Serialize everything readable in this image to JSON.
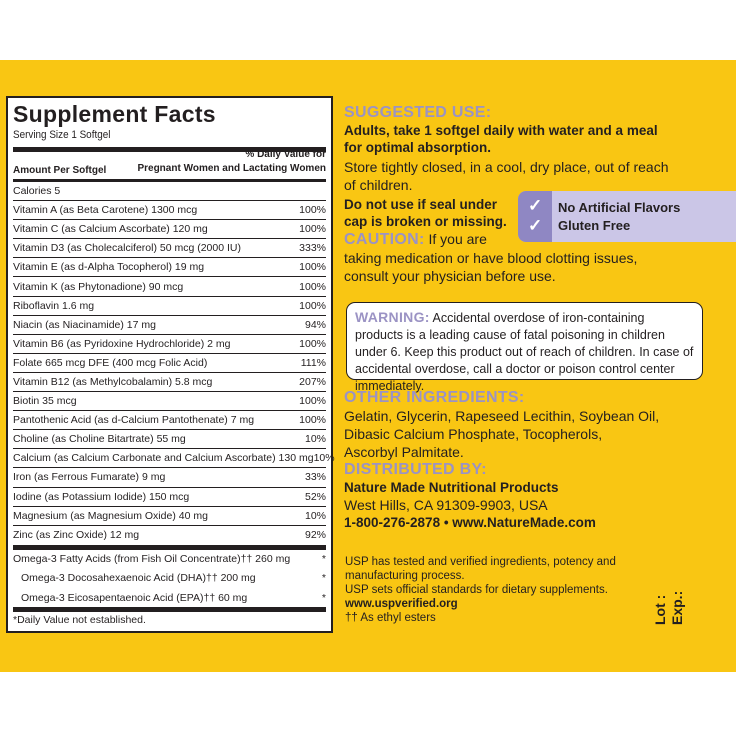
{
  "colors": {
    "band": "#f9c613",
    "heading": "#9b93c4",
    "badge": "#cbc6e7",
    "badge_dark": "#8f87c3"
  },
  "facts": {
    "title": "Supplement Facts",
    "serving": "Serving Size 1 Softgel",
    "amount_header": "Amount Per Softgel",
    "dv_header_1": "% Daily Value for",
    "dv_header_2": "Pregnant Women and Lactating Women",
    "calories": "Calories 5",
    "rows": [
      {
        "name": "Vitamin A (as Beta Carotene)  1300 mcg",
        "dv": "100%"
      },
      {
        "name": "Vitamin C (as Calcium Ascorbate)  120 mg",
        "dv": "100%"
      },
      {
        "name": "Vitamin D3 (as Cholecalciferol)  50 mcg (2000 IU)",
        "dv": "333%"
      },
      {
        "name": "Vitamin E (as d-Alpha Tocopherol) 19 mg",
        "dv": "100%"
      },
      {
        "name": "Vitamin K (as Phytonadione)  90 mcg",
        "dv": "100%"
      },
      {
        "name": "Riboflavin  1.6 mg",
        "dv": "100%"
      },
      {
        "name": "Niacin (as Niacinamide)  17 mg",
        "dv": "94%"
      },
      {
        "name": "Vitamin B6 (as Pyridoxine Hydrochloride)  2 mg",
        "dv": "100%"
      },
      {
        "name": "Folate  665 mcg DFE (400 mcg Folic Acid)",
        "dv": "111%"
      },
      {
        "name": "Vitamin B12 (as Methylcobalamin)  5.8 mcg",
        "dv": "207%"
      },
      {
        "name": "Biotin  35 mcg",
        "dv": "100%"
      },
      {
        "name": "Pantothenic Acid (as d-Calcium Pantothenate)  7 mg",
        "dv": "100%"
      },
      {
        "name": "Choline (as Choline Bitartrate)  55 mg",
        "dv": "10%"
      },
      {
        "name": "Calcium (as Calcium Carbonate and Calcium Ascorbate)  130 mg",
        "dv": "10%"
      },
      {
        "name": "Iron (as Ferrous Fumarate)  9 mg",
        "dv": "33%"
      },
      {
        "name": "Iodine (as Potassium Iodide)  150 mcg",
        "dv": "52%"
      },
      {
        "name": "Magnesium (as Magnesium Oxide)  40 mg",
        "dv": "10%"
      },
      {
        "name": "Zinc (as Zinc Oxide)  12 mg",
        "dv": "92%"
      }
    ],
    "omega": [
      {
        "name": "Omega-3 Fatty Acids (from Fish Oil Concentrate)†† 260 mg",
        "dv": "*"
      },
      {
        "name": "Omega-3 Docosahexaenoic Acid (DHA)†† 200 mg",
        "dv": "*"
      },
      {
        "name": "Omega-3 Eicosapentaenoic Acid (EPA)†† 60 mg",
        "dv": "*"
      }
    ],
    "footnote": "*Daily Value not established."
  },
  "right": {
    "suggested_heading": "SUGGESTED USE:",
    "suggested_1": "Adults, take 1 softgel daily with water and a meal",
    "suggested_2": "for optimal absorption.",
    "store_1": "Store tightly closed, in a cool, dry place, out of reach",
    "store_2": "of children.",
    "seal_1": "Do not use if seal under",
    "seal_2": "cap is broken or missing.",
    "caution_heading": "CAUTION:",
    "caution_1": " If you are",
    "caution_2": "taking medication or have blood clotting issues,",
    "caution_3": "consult your physician before use.",
    "badges": [
      "No Artificial Flavors",
      "Gluten Free"
    ],
    "warning_heading": "WARNING:",
    "warning_text": " Accidental overdose of iron-containing products is a leading cause of fatal poisoning in children under 6. Keep this product out of reach of children. In case of accidental overdose, call a doctor or poison control center immediately.",
    "other_heading": "OTHER INGREDIENTS:",
    "other_1": "Gelatin, Glycerin, Rapeseed Lecithin, Soybean Oil,",
    "other_2": "Dibasic Calcium Phosphate, Tocopherols,",
    "other_3": "Ascorbyl Palmitate.",
    "dist_heading": "DISTRIBUTED BY:",
    "dist_1": "Nature Made Nutritional Products",
    "dist_2": "West Hills, CA 91309-9903, USA",
    "dist_3": "1-800-276-2878 • www.NatureMade.com",
    "usp_1": "USP has tested and verified ingredients, potency and",
    "usp_2": "manufacturing process.",
    "usp_3": "USP sets official standards for dietary supplements.",
    "usp_4": "www.uspverified.org",
    "usp_5": "†† As ethyl esters",
    "lot": "Lot :",
    "exp": "Exp.:"
  }
}
